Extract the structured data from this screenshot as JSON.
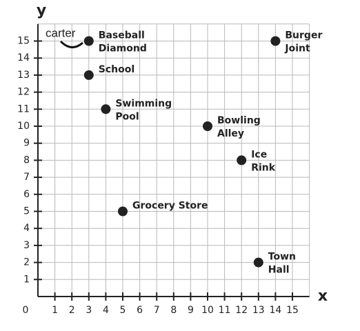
{
  "chart_data": {
    "type": "scatter",
    "x_label": "x",
    "y_label": "y",
    "annotation": "carter",
    "xlim": [
      0,
      16
    ],
    "ylim": [
      0,
      16
    ],
    "xticks": [
      0,
      1,
      2,
      3,
      4,
      5,
      6,
      7,
      8,
      9,
      10,
      11,
      12,
      13,
      14,
      15
    ],
    "yticks": [
      1,
      2,
      3,
      4,
      5,
      6,
      7,
      8,
      9,
      10,
      11,
      12,
      13,
      14,
      15
    ],
    "grid": true,
    "color": "#222222",
    "points": [
      {
        "label": [
          "Baseball",
          "Diamond"
        ],
        "x": 3,
        "y": 15
      },
      {
        "label": [
          "Burger",
          "Joint"
        ],
        "x": 14,
        "y": 15
      },
      {
        "label": [
          "School"
        ],
        "x": 3,
        "y": 13
      },
      {
        "label": [
          "Swimming",
          "Pool"
        ],
        "x": 4,
        "y": 11
      },
      {
        "label": [
          "Bowling",
          "Alley"
        ],
        "x": 10,
        "y": 10
      },
      {
        "label": [
          "Ice",
          "Rink"
        ],
        "x": 12,
        "y": 8
      },
      {
        "label": [
          "Grocery Store"
        ],
        "x": 5,
        "y": 5
      },
      {
        "label": [
          "Town",
          "Hall"
        ],
        "x": 13,
        "y": 2
      }
    ]
  }
}
